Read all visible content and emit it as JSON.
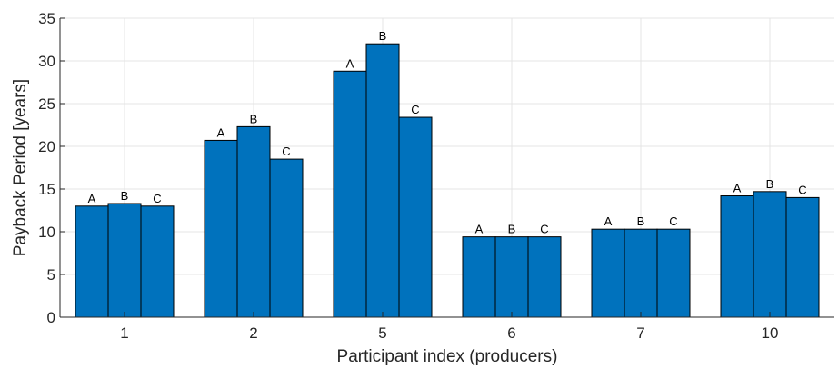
{
  "chart_data": {
    "type": "bar",
    "xlabel": "Participant index (producers)",
    "ylabel": "Payback Period [years]",
    "ylim": [
      0,
      35
    ],
    "yticks": [
      0,
      5,
      10,
      15,
      20,
      25,
      30,
      35
    ],
    "grid": true,
    "categories": [
      "1",
      "2",
      "5",
      "6",
      "7",
      "10"
    ],
    "bar_labels": [
      "A",
      "B",
      "C"
    ],
    "series": [
      {
        "values": [
          13.0,
          20.7,
          28.8,
          9.4,
          10.3,
          14.2
        ]
      },
      {
        "values": [
          13.3,
          22.3,
          32.0,
          9.4,
          10.3,
          14.7
        ]
      },
      {
        "values": [
          13.0,
          18.5,
          23.4,
          9.4,
          10.3,
          14.0
        ]
      }
    ],
    "colors": {
      "bar": "#0072BD",
      "edge": "#000000",
      "grid": "#e4e4e4",
      "text": "#262626"
    }
  }
}
